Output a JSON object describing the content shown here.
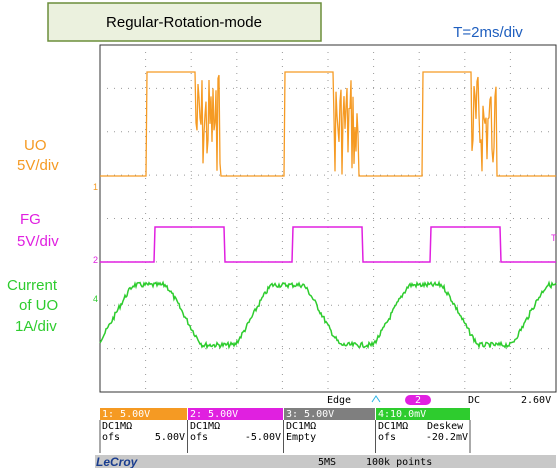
{
  "header": {
    "title": "Regular-Rotation-mode",
    "timebase": "T=2ms/div"
  },
  "labels": {
    "uo": [
      "UO",
      "5V/div"
    ],
    "fg": [
      "FG",
      "5V/div"
    ],
    "current": [
      "Current",
      "of UO",
      "1A/div"
    ]
  },
  "markers": {
    "ch1": "1",
    "ch2": "2",
    "ch4": "4",
    "trigger": "T"
  },
  "trigger_bar": {
    "mode": "Edge",
    "source": "2",
    "coupling": "DC",
    "level": "2.60V"
  },
  "channels": [
    {
      "scale": "1: 5.00V",
      "coupling": "DC1MΩ",
      "offset_label": "ofs",
      "offset": "5.00V"
    },
    {
      "scale": "2: 5.00V",
      "coupling": "DC1MΩ",
      "offset_label": "ofs",
      "offset": "-5.00V"
    },
    {
      "scale": "3: 5.00V",
      "coupling": "DC1MΩ",
      "offset_label": "Empty"
    },
    {
      "scale": "4:10.0mV",
      "coupling": "DC1MΩ",
      "deskew": "Deskew",
      "offset_label": "ofs",
      "offset": "-20.2mV"
    }
  ],
  "footer": {
    "brand": "LeCroy",
    "rate": "5MS",
    "points": "100k points"
  }
}
